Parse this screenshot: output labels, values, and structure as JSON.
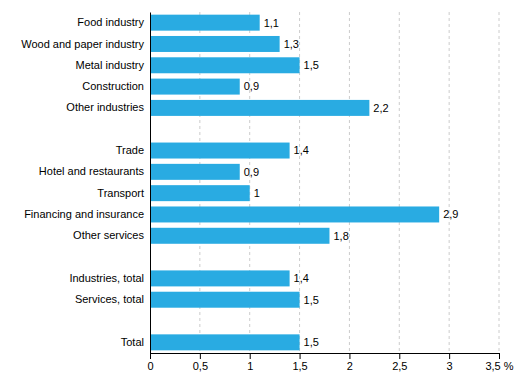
{
  "chart_data": {
    "type": "bar",
    "orientation": "horizontal",
    "categories": [
      "Food industry",
      "Wood and paper industry",
      "Metal industry",
      "Construction",
      "Other industries",
      null,
      "Trade",
      "Hotel and restaurants",
      "Transport",
      "Financing and insurance",
      "Other services",
      null,
      "Industries, total",
      "Services, total",
      null,
      "Total"
    ],
    "values": [
      1.1,
      1.3,
      1.5,
      0.9,
      2.2,
      null,
      1.4,
      0.9,
      1.0,
      2.9,
      1.8,
      null,
      1.4,
      1.5,
      null,
      1.5
    ],
    "value_labels": [
      "1,1",
      "1,3",
      "1,5",
      "0,9",
      "2,2",
      null,
      "1,4",
      "0,9",
      "1",
      "2,9",
      "1,8",
      null,
      "1,4",
      "1,5",
      null,
      "1,5"
    ],
    "data_labels": true,
    "color": "#29ABE2",
    "xlim": [
      0,
      3.5
    ],
    "xticks": [
      0,
      {
        "value": 0.5,
        "label": "0,5"
      },
      1,
      {
        "value": 1.5,
        "label": "1,5"
      },
      2,
      {
        "value": 2.5,
        "label": "2,5"
      },
      3,
      {
        "value": 3.5,
        "label": "3,5 %"
      }
    ],
    "grid": true
  }
}
